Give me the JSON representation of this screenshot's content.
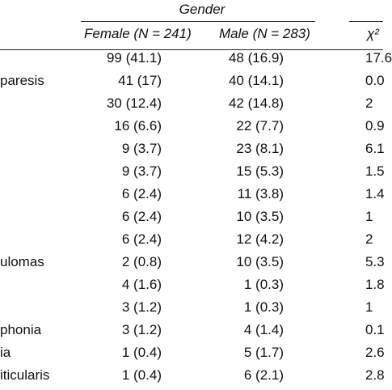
{
  "table": {
    "group_header": "Gender",
    "columns": {
      "female": "Female (N = 241)",
      "male": "Male (N = 283)",
      "stat": "χ²"
    },
    "rows": [
      {
        "label": "",
        "female": "99 (41.1)",
        "male": "48 (16.9)",
        "stat": "17.6"
      },
      {
        "label": "paresis",
        "female": "41 (17)",
        "male": "40 (14.1)",
        "stat": "0.0"
      },
      {
        "label": "",
        "female": "30 (12.4)",
        "male": "42 (14.8)",
        "stat": "2"
      },
      {
        "label": "",
        "female": "16 (6.6)",
        "male": "22 (7.7)",
        "stat": "0.9"
      },
      {
        "label": "",
        "female": "9 (3.7)",
        "male": "23 (8.1)",
        "stat": "6.1"
      },
      {
        "label": "",
        "female": "9 (3.7)",
        "male": "15 (5.3)",
        "stat": "1.5"
      },
      {
        "label": "",
        "female": "6 (2.4)",
        "male": "11 (3.8)",
        "stat": "1.4"
      },
      {
        "label": "",
        "female": "6 (2.4)",
        "male": "10 (3.5)",
        "stat": "1"
      },
      {
        "label": "",
        "female": "6 (2.4)",
        "male": "12 (4.2)",
        "stat": "2"
      },
      {
        "label": "ulomas",
        "female": "2 (0.8)",
        "male": "10 (3.5)",
        "stat": "5.3"
      },
      {
        "label": "",
        "female": "4 (1.6)",
        "male": "1 (0.3)",
        "stat": "1.8"
      },
      {
        "label": "",
        "female": "3 (1.2)",
        "male": "1 (0.3)",
        "stat": "1"
      },
      {
        "label": "phonia",
        "female": "3 (1.2)",
        "male": "4 (1.4)",
        "stat": "0.1"
      },
      {
        "label": "ia",
        "female": "1 (0.4)",
        "male": "5 (1.7)",
        "stat": "2.6"
      },
      {
        "label": "iticularis",
        "female": "1 (0.4)",
        "male": "6 (2.1)",
        "stat": "2.8"
      }
    ]
  }
}
